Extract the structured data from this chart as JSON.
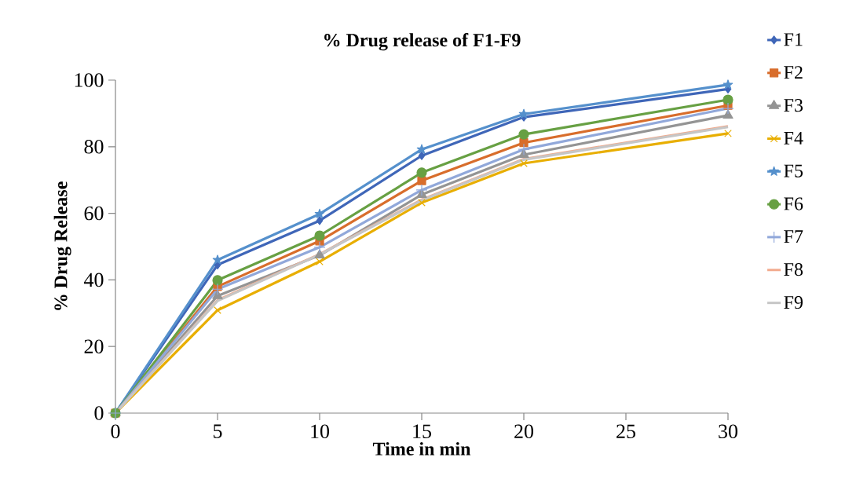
{
  "chart_data": {
    "type": "line",
    "title": "% Drug release of F1-F9",
    "xlabel": "Time in min",
    "ylabel": "% Drug Release",
    "x": [
      0,
      5,
      10,
      15,
      20,
      30
    ],
    "series": [
      {
        "name": "F1",
        "color": "#3f66b8",
        "marker": "diamond",
        "values": [
          0,
          44.5,
          57.8,
          77.3,
          88.9,
          97.3
        ]
      },
      {
        "name": "F2",
        "color": "#d86d2c",
        "marker": "square",
        "values": [
          0,
          38,
          51.7,
          69.8,
          81.2,
          92.4
        ]
      },
      {
        "name": "F3",
        "color": "#949494",
        "marker": "triangle",
        "values": [
          0,
          35.2,
          47.4,
          65.6,
          77.6,
          89.4
        ]
      },
      {
        "name": "F4",
        "color": "#e8ae00",
        "marker": "cross",
        "values": [
          0,
          30.9,
          45.5,
          63.2,
          75,
          84
        ]
      },
      {
        "name": "F5",
        "color": "#5590cc",
        "marker": "star",
        "values": [
          0,
          46,
          59.8,
          79.2,
          89.8,
          98.6
        ]
      },
      {
        "name": "F6",
        "color": "#67a043",
        "marker": "circle",
        "values": [
          0,
          39.9,
          53.3,
          72.2,
          83.7,
          94.1
        ]
      },
      {
        "name": "F7",
        "color": "#91a8da",
        "marker": "plus",
        "values": [
          0,
          37.2,
          49.8,
          67,
          79.2,
          91.5
        ]
      },
      {
        "name": "F8",
        "color": "#f2ab8e",
        "marker": "none",
        "values": [
          0,
          33.9,
          47.7,
          64.1,
          76.3,
          86.1
        ]
      },
      {
        "name": "F9",
        "color": "#c6c6c6",
        "marker": "none",
        "values": [
          0,
          33.7,
          47.6,
          63.9,
          76.1,
          85.9
        ]
      }
    ],
    "xlim": [
      0,
      30
    ],
    "xticks": [
      0,
      5,
      10,
      15,
      20,
      25,
      30
    ],
    "ylim": [
      0,
      100
    ],
    "yticks": [
      0,
      20,
      40,
      60,
      80,
      100
    ],
    "grid": false,
    "legend": "right",
    "line_style": "solid"
  }
}
